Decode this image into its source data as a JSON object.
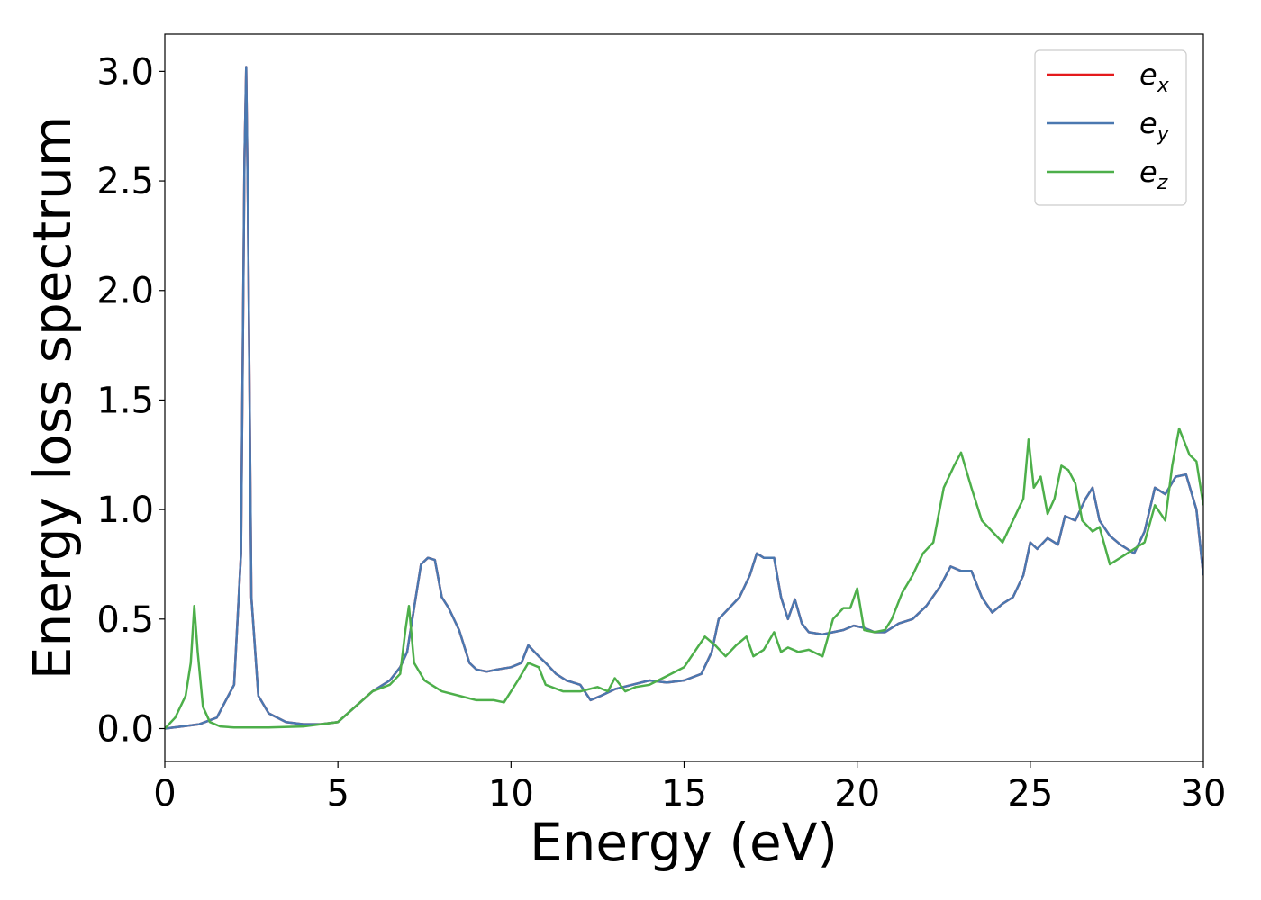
{
  "chart_data": {
    "type": "line",
    "xlabel": "Energy (eV)",
    "ylabel": "Energy loss spectrum",
    "xlim": [
      0,
      30
    ],
    "ylim": [
      -0.15,
      3.17
    ],
    "xticks": [
      0,
      5,
      10,
      15,
      20,
      25,
      30
    ],
    "xtick_labels": [
      "0",
      "5",
      "10",
      "15",
      "20",
      "25",
      "30"
    ],
    "yticks": [
      0.0,
      0.5,
      1.0,
      1.5,
      2.0,
      2.5,
      3.0
    ],
    "ytick_labels": [
      "0.0",
      "0.5",
      "1.0",
      "1.5",
      "2.0",
      "2.5",
      "3.0"
    ],
    "grid": false,
    "legend_position": "top-right",
    "series": [
      {
        "name": "e",
        "subscript": "x",
        "color": "#e41a1c",
        "x": [
          0,
          0.5,
          1.0,
          1.5,
          2.0,
          2.2,
          2.3,
          2.35,
          2.4,
          2.5,
          2.7,
          3.0,
          3.5,
          4.0,
          4.5,
          5.0,
          5.5,
          6.0,
          6.5,
          6.8,
          7.0,
          7.2,
          7.4,
          7.6,
          7.8,
          8.0,
          8.2,
          8.5,
          8.8,
          9.0,
          9.3,
          9.6,
          10.0,
          10.3,
          10.5,
          10.8,
          11.0,
          11.3,
          11.6,
          12.0,
          12.3,
          12.6,
          13.0,
          13.5,
          14.0,
          14.5,
          15.0,
          15.5,
          15.8,
          16.0,
          16.3,
          16.6,
          16.9,
          17.1,
          17.3,
          17.6,
          17.8,
          18.0,
          18.2,
          18.4,
          18.6,
          19.0,
          19.3,
          19.6,
          19.9,
          20.2,
          20.5,
          20.8,
          21.2,
          21.6,
          22.0,
          22.4,
          22.7,
          23.0,
          23.3,
          23.6,
          23.9,
          24.2,
          24.5,
          24.8,
          25.0,
          25.2,
          25.5,
          25.8,
          26.0,
          26.3,
          26.6,
          26.8,
          27.0,
          27.3,
          27.6,
          28.0,
          28.3,
          28.6,
          28.9,
          29.2,
          29.5,
          29.8,
          30.0
        ],
        "y": [
          0.0,
          0.01,
          0.02,
          0.05,
          0.2,
          0.8,
          2.6,
          3.02,
          2.4,
          0.6,
          0.15,
          0.07,
          0.03,
          0.02,
          0.02,
          0.03,
          0.1,
          0.17,
          0.22,
          0.28,
          0.35,
          0.55,
          0.75,
          0.78,
          0.77,
          0.6,
          0.55,
          0.45,
          0.3,
          0.27,
          0.26,
          0.27,
          0.28,
          0.3,
          0.38,
          0.33,
          0.3,
          0.25,
          0.22,
          0.2,
          0.13,
          0.15,
          0.18,
          0.2,
          0.22,
          0.21,
          0.22,
          0.25,
          0.35,
          0.5,
          0.55,
          0.6,
          0.7,
          0.8,
          0.78,
          0.78,
          0.6,
          0.5,
          0.59,
          0.48,
          0.44,
          0.43,
          0.44,
          0.45,
          0.47,
          0.46,
          0.44,
          0.44,
          0.48,
          0.5,
          0.56,
          0.65,
          0.74,
          0.72,
          0.72,
          0.6,
          0.53,
          0.57,
          0.6,
          0.7,
          0.85,
          0.82,
          0.87,
          0.84,
          0.97,
          0.95,
          1.05,
          1.1,
          0.95,
          0.88,
          0.84,
          0.8,
          0.9,
          1.1,
          1.07,
          1.15,
          1.16,
          1.0,
          0.7
        ]
      },
      {
        "name": "e",
        "subscript": "y",
        "color": "#4a78b0",
        "x": [
          0,
          0.5,
          1.0,
          1.5,
          2.0,
          2.2,
          2.3,
          2.35,
          2.4,
          2.5,
          2.7,
          3.0,
          3.5,
          4.0,
          4.5,
          5.0,
          5.5,
          6.0,
          6.5,
          6.8,
          7.0,
          7.2,
          7.4,
          7.6,
          7.8,
          8.0,
          8.2,
          8.5,
          8.8,
          9.0,
          9.3,
          9.6,
          10.0,
          10.3,
          10.5,
          10.8,
          11.0,
          11.3,
          11.6,
          12.0,
          12.3,
          12.6,
          13.0,
          13.5,
          14.0,
          14.5,
          15.0,
          15.5,
          15.8,
          16.0,
          16.3,
          16.6,
          16.9,
          17.1,
          17.3,
          17.6,
          17.8,
          18.0,
          18.2,
          18.4,
          18.6,
          19.0,
          19.3,
          19.6,
          19.9,
          20.2,
          20.5,
          20.8,
          21.2,
          21.6,
          22.0,
          22.4,
          22.7,
          23.0,
          23.3,
          23.6,
          23.9,
          24.2,
          24.5,
          24.8,
          25.0,
          25.2,
          25.5,
          25.8,
          26.0,
          26.3,
          26.6,
          26.8,
          27.0,
          27.3,
          27.6,
          28.0,
          28.3,
          28.6,
          28.9,
          29.2,
          29.5,
          29.8,
          30.0
        ],
        "y": [
          0.0,
          0.01,
          0.02,
          0.05,
          0.2,
          0.8,
          2.6,
          3.02,
          2.4,
          0.6,
          0.15,
          0.07,
          0.03,
          0.02,
          0.02,
          0.03,
          0.1,
          0.17,
          0.22,
          0.28,
          0.35,
          0.55,
          0.75,
          0.78,
          0.77,
          0.6,
          0.55,
          0.45,
          0.3,
          0.27,
          0.26,
          0.27,
          0.28,
          0.3,
          0.38,
          0.33,
          0.3,
          0.25,
          0.22,
          0.2,
          0.13,
          0.15,
          0.18,
          0.2,
          0.22,
          0.21,
          0.22,
          0.25,
          0.35,
          0.5,
          0.55,
          0.6,
          0.7,
          0.8,
          0.78,
          0.78,
          0.6,
          0.5,
          0.59,
          0.48,
          0.44,
          0.43,
          0.44,
          0.45,
          0.47,
          0.46,
          0.44,
          0.44,
          0.48,
          0.5,
          0.56,
          0.65,
          0.74,
          0.72,
          0.72,
          0.6,
          0.53,
          0.57,
          0.6,
          0.7,
          0.85,
          0.82,
          0.87,
          0.84,
          0.97,
          0.95,
          1.05,
          1.1,
          0.95,
          0.88,
          0.84,
          0.8,
          0.9,
          1.1,
          1.07,
          1.15,
          1.16,
          1.0,
          0.7
        ]
      },
      {
        "name": "e",
        "subscript": "z",
        "color": "#4daf4a",
        "x": [
          0,
          0.3,
          0.6,
          0.75,
          0.85,
          0.95,
          1.1,
          1.3,
          1.6,
          2.0,
          3.0,
          4.0,
          5.0,
          5.5,
          6.0,
          6.5,
          6.8,
          6.95,
          7.05,
          7.2,
          7.5,
          8.0,
          8.5,
          9.0,
          9.5,
          9.8,
          10.2,
          10.5,
          10.8,
          11.0,
          11.5,
          12.0,
          12.5,
          12.8,
          13.0,
          13.3,
          13.6,
          14.0,
          14.5,
          15.0,
          15.3,
          15.6,
          15.9,
          16.2,
          16.5,
          16.8,
          17.0,
          17.3,
          17.6,
          17.8,
          18.0,
          18.3,
          18.6,
          19.0,
          19.3,
          19.6,
          19.8,
          20.0,
          20.2,
          20.5,
          20.8,
          21.0,
          21.3,
          21.6,
          21.9,
          22.2,
          22.5,
          22.8,
          23.0,
          23.3,
          23.6,
          23.9,
          24.2,
          24.5,
          24.8,
          24.95,
          25.1,
          25.3,
          25.5,
          25.7,
          25.9,
          26.1,
          26.3,
          26.5,
          26.8,
          27.0,
          27.3,
          27.6,
          28.0,
          28.3,
          28.6,
          28.9,
          29.1,
          29.3,
          29.6,
          29.8,
          30.0
        ],
        "y": [
          0.0,
          0.05,
          0.15,
          0.3,
          0.56,
          0.35,
          0.1,
          0.03,
          0.01,
          0.005,
          0.005,
          0.01,
          0.03,
          0.1,
          0.17,
          0.2,
          0.25,
          0.45,
          0.56,
          0.3,
          0.22,
          0.17,
          0.15,
          0.13,
          0.13,
          0.12,
          0.22,
          0.3,
          0.28,
          0.2,
          0.17,
          0.17,
          0.19,
          0.17,
          0.23,
          0.17,
          0.19,
          0.2,
          0.24,
          0.28,
          0.35,
          0.42,
          0.38,
          0.33,
          0.38,
          0.42,
          0.33,
          0.36,
          0.44,
          0.35,
          0.37,
          0.35,
          0.36,
          0.33,
          0.5,
          0.55,
          0.55,
          0.64,
          0.45,
          0.44,
          0.45,
          0.5,
          0.62,
          0.7,
          0.8,
          0.85,
          1.1,
          1.2,
          1.26,
          1.1,
          0.95,
          0.9,
          0.85,
          0.95,
          1.05,
          1.32,
          1.1,
          1.15,
          0.98,
          1.05,
          1.2,
          1.18,
          1.12,
          0.95,
          0.9,
          0.92,
          0.75,
          0.78,
          0.82,
          0.85,
          1.02,
          0.95,
          1.2,
          1.37,
          1.25,
          1.22,
          1.02
        ]
      }
    ]
  }
}
